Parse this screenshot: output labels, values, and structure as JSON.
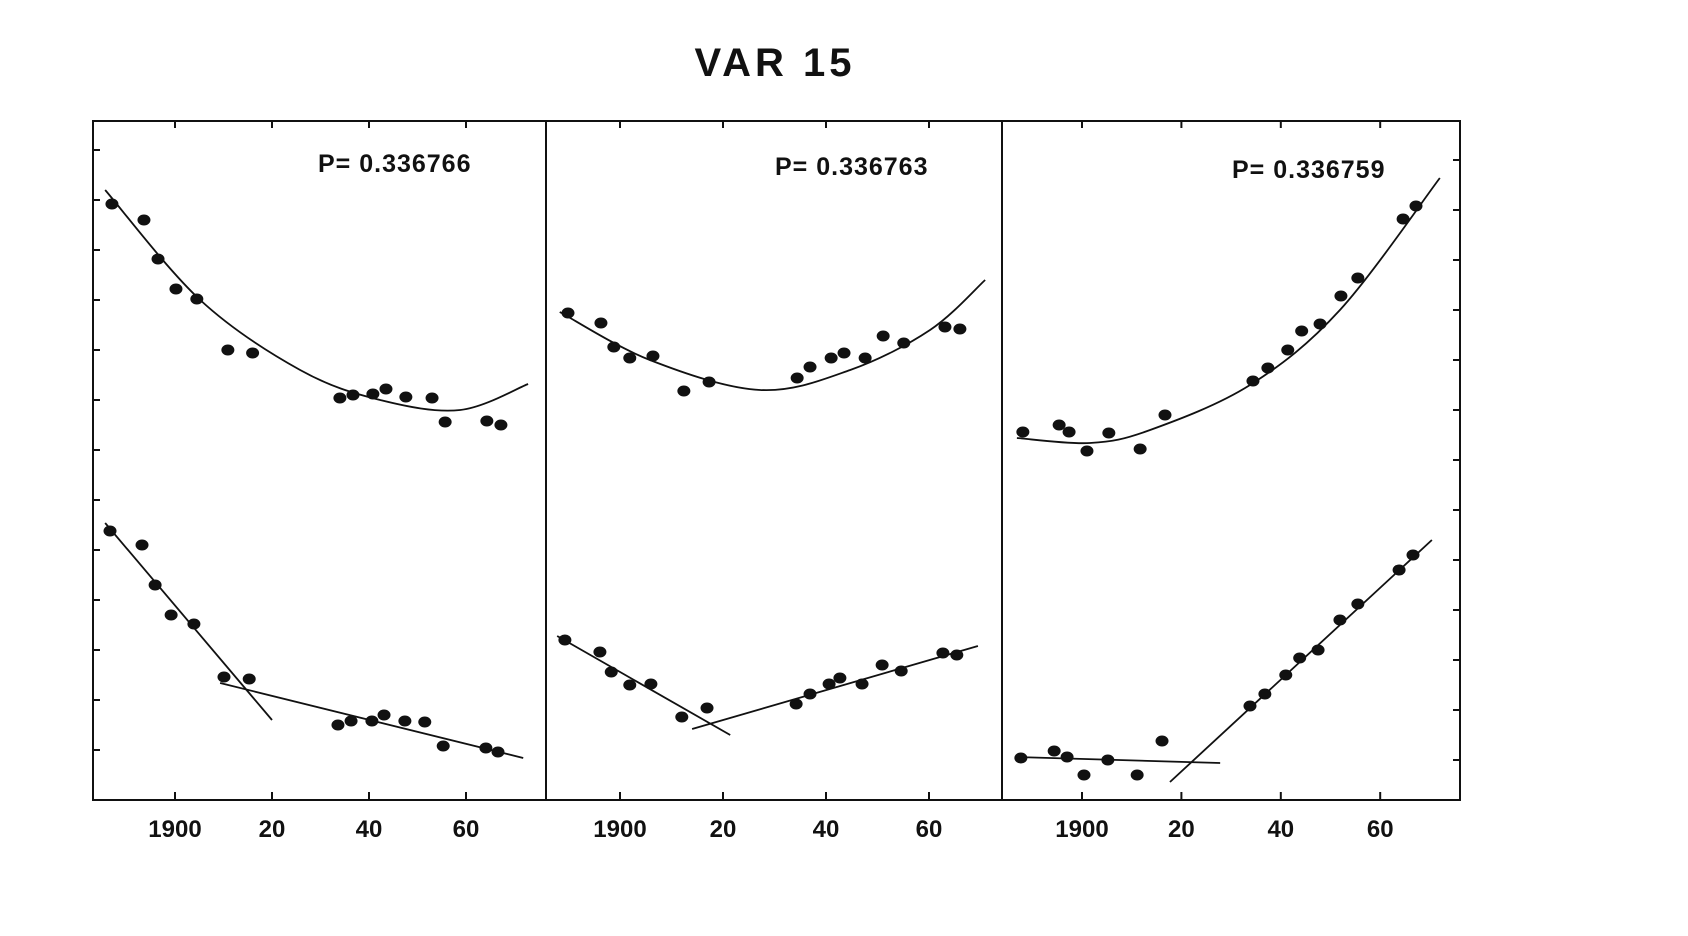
{
  "chart_data": {
    "type": "scatter",
    "title": "VAR 15",
    "xlabel": "",
    "ylabel": "",
    "grid": false,
    "ylim": [
      0,
      13.6
    ],
    "panels": [
      {
        "label": "P= 0.336766",
        "xlim": [
          1883,
          1975
        ],
        "x_tick_values": [
          1900,
          1920,
          1940,
          1960
        ],
        "x_tick_labels": [
          "1900",
          "20",
          "40",
          "60"
        ],
        "upper": {
          "points": [
            [
              1887,
              11.92
            ],
            [
              1893.6,
              11.6
            ],
            [
              1896.5,
              10.82
            ],
            [
              1900.2,
              10.22
            ],
            [
              1904.5,
              10.02
            ],
            [
              1910.9,
              9.0
            ],
            [
              1916,
              8.94
            ],
            [
              1934,
              8.04
            ],
            [
              1936.7,
              8.1
            ],
            [
              1940.8,
              8.12
            ],
            [
              1943.5,
              8.22
            ],
            [
              1947.6,
              8.06
            ],
            [
              1953,
              8.04
            ],
            [
              1955.7,
              7.56
            ],
            [
              1964.3,
              7.58
            ],
            [
              1967.2,
              7.5
            ]
          ],
          "fit": [
            [
              1885.6,
              12.2
            ],
            [
              1905.2,
              10.0
            ],
            [
              1925.8,
              8.6
            ],
            [
              1942.3,
              8.0
            ],
            [
              1958.8,
              7.8
            ],
            [
              1972.8,
              8.32
            ]
          ]
        },
        "lower": {
          "points": [
            [
              1886.6,
              5.38
            ],
            [
              1893.2,
              5.1
            ],
            [
              1895.9,
              4.3
            ],
            [
              1899.2,
              3.7
            ],
            [
              1903.9,
              3.52
            ],
            [
              1910.1,
              2.46
            ],
            [
              1915.3,
              2.42
            ],
            [
              1933.6,
              1.5
            ],
            [
              1936.3,
              1.58
            ],
            [
              1940.6,
              1.58
            ],
            [
              1943.1,
              1.7
            ],
            [
              1947.4,
              1.58
            ],
            [
              1951.5,
              1.56
            ],
            [
              1955.3,
              1.08
            ],
            [
              1964.1,
              1.04
            ],
            [
              1966.6,
              0.96
            ]
          ],
          "fits": [
            [
              [
                1885.6,
                5.54
              ],
              [
                1920,
                1.6
              ]
            ],
            [
              [
                1909.3,
                2.34
              ],
              [
                1971.8,
                0.84
              ]
            ]
          ]
        }
      },
      {
        "label": "P= 0.336763",
        "xlim": [
          1883,
          1975
        ],
        "x_tick_values": [
          1900,
          1920,
          1940,
          1960
        ],
        "x_tick_labels": [
          "1900",
          "20",
          "40",
          "60"
        ],
        "upper": {
          "points": [
            [
              1889.9,
              9.74
            ],
            [
              1896.3,
              9.54
            ],
            [
              1898.8,
              9.06
            ],
            [
              1901.9,
              8.84
            ],
            [
              1906.4,
              8.88
            ],
            [
              1912.4,
              8.18
            ],
            [
              1917.3,
              8.36
            ],
            [
              1934.4,
              8.44
            ],
            [
              1936.9,
              8.66
            ],
            [
              1941,
              8.84
            ],
            [
              1943.5,
              8.94
            ],
            [
              1947.6,
              8.84
            ],
            [
              1951.1,
              9.28
            ],
            [
              1955.1,
              9.14
            ],
            [
              1963.1,
              9.46
            ],
            [
              1966,
              9.42
            ]
          ],
          "fit": [
            [
              1888.3,
              9.76
            ],
            [
              1905.8,
              8.8
            ],
            [
              1927.2,
              8.2
            ],
            [
              1944.7,
              8.6
            ],
            [
              1960.2,
              9.4
            ],
            [
              1970.9,
              10.4
            ]
          ]
        },
        "lower": {
          "points": [
            [
              1889.3,
              3.2
            ],
            [
              1896.1,
              2.96
            ],
            [
              1898.3,
              2.56
            ],
            [
              1901.9,
              2.3
            ],
            [
              1906,
              2.32
            ],
            [
              1912,
              1.66
            ],
            [
              1916.9,
              1.84
            ],
            [
              1934.2,
              1.92
            ],
            [
              1936.9,
              2.12
            ],
            [
              1940.6,
              2.32
            ],
            [
              1942.7,
              2.44
            ],
            [
              1947,
              2.32
            ],
            [
              1950.9,
              2.7
            ],
            [
              1954.6,
              2.58
            ],
            [
              1962.7,
              2.94
            ],
            [
              1965.4,
              2.9
            ]
          ],
          "fits": [
            [
              [
                1887.8,
                3.28
              ],
              [
                1921.4,
                1.3
              ]
            ],
            [
              [
                1914,
                1.42
              ],
              [
                1969.5,
                3.08
              ]
            ]
          ]
        }
      },
      {
        "label": "P= 0.336759",
        "xlim": [
          1883,
          1975
        ],
        "x_tick_values": [
          1900,
          1920,
          1940,
          1960
        ],
        "x_tick_labels": [
          "1900",
          "20",
          "40",
          "60"
        ],
        "upper": {
          "points": [
            [
              1888.1,
              7.36
            ],
            [
              1895.4,
              7.5
            ],
            [
              1897.4,
              7.36
            ],
            [
              1901,
              6.98
            ],
            [
              1905.4,
              7.34
            ],
            [
              1911.7,
              7.02
            ],
            [
              1916.7,
              7.7
            ],
            [
              1934.4,
              8.38
            ],
            [
              1937.4,
              8.64
            ],
            [
              1941.4,
              9.0
            ],
            [
              1944.2,
              9.38
            ],
            [
              1947.9,
              9.52
            ],
            [
              1952.1,
              10.08
            ],
            [
              1955.5,
              10.44
            ],
            [
              1964.6,
              11.62
            ],
            [
              1967.2,
              11.88
            ]
          ],
          "fit": [
            [
              1886.9,
              7.24
            ],
            [
              1901.6,
              7.14
            ],
            [
              1913.7,
              7.4
            ],
            [
              1933.8,
              8.3
            ],
            [
              1951.9,
              9.8
            ],
            [
              1972,
              12.44
            ]
          ]
        },
        "lower": {
          "points": [
            [
              1887.7,
              0.84
            ],
            [
              1894.4,
              0.98
            ],
            [
              1897,
              0.86
            ],
            [
              1900.4,
              0.5
            ],
            [
              1905.2,
              0.8
            ],
            [
              1911.1,
              0.5
            ],
            [
              1916.1,
              1.18
            ],
            [
              1933.8,
              1.88
            ],
            [
              1936.8,
              2.12
            ],
            [
              1941,
              2.5
            ],
            [
              1943.8,
              2.84
            ],
            [
              1947.5,
              3.0
            ],
            [
              1951.9,
              3.6
            ],
            [
              1955.5,
              3.92
            ],
            [
              1963.8,
              4.6
            ],
            [
              1966.6,
              4.9
            ]
          ],
          "fits": [
            [
              [
                1886.5,
                0.86
              ],
              [
                1927.8,
                0.74
              ]
            ],
            [
              [
                1917.7,
                0.36
              ],
              [
                1970.4,
                5.2
              ]
            ]
          ]
        }
      }
    ]
  }
}
